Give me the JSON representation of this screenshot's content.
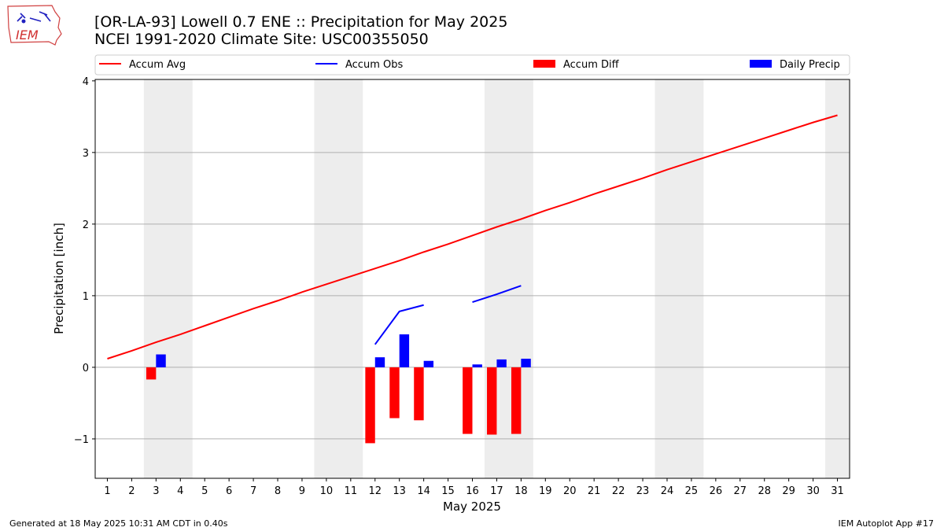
{
  "logo": {
    "text": "IEM"
  },
  "header": {
    "title_line1": "[OR-LA-93] Lowell 0.7 ENE :: Precipitation for May 2025",
    "title_line2": "NCEI 1991-2020 Climate Site: USC00355050"
  },
  "footer": {
    "generated": "Generated at 18 May 2025 10:31 AM CDT in 0.40s",
    "app": "IEM Autoplot App #17"
  },
  "colors": {
    "avg": "#ff0000",
    "obs": "#0000ff",
    "diff": "#ff0000",
    "daily": "#0000ff",
    "weekend": "#ededed",
    "grid": "#b0b0b0"
  },
  "chart_data": {
    "type": "bar",
    "xlabel": "May 2025",
    "ylabel": "Precipitation [inch]",
    "xlim": [
      0.5,
      31.5
    ],
    "ylim": [
      -1.55,
      4.02
    ],
    "yticks": [
      -1,
      0,
      1,
      2,
      3,
      4
    ],
    "yticklabels": [
      "−1",
      "0",
      "1",
      "2",
      "3",
      "4"
    ],
    "grid": "y",
    "days": [
      1,
      2,
      3,
      4,
      5,
      6,
      7,
      8,
      9,
      10,
      11,
      12,
      13,
      14,
      15,
      16,
      17,
      18,
      19,
      20,
      21,
      22,
      23,
      24,
      25,
      26,
      27,
      28,
      29,
      30,
      31
    ],
    "weekend_shading": [
      [
        2.5,
        4.5
      ],
      [
        9.5,
        11.5
      ],
      [
        16.5,
        18.5
      ],
      [
        23.5,
        25.5
      ],
      [
        30.5,
        31.5
      ]
    ],
    "legend": {
      "position": "top",
      "entries": [
        {
          "label": "Accum Avg",
          "kind": "line",
          "color": "#ff0000"
        },
        {
          "label": "Accum Obs",
          "kind": "line",
          "color": "#0000ff"
        },
        {
          "label": "Accum Diff",
          "kind": "bar",
          "color": "#ff0000"
        },
        {
          "label": "Daily Precip",
          "kind": "bar",
          "color": "#0000ff"
        }
      ]
    },
    "series": [
      {
        "name": "Accum Avg",
        "type": "line",
        "x": [
          1,
          2,
          3,
          4,
          5,
          6,
          7,
          8,
          9,
          10,
          11,
          12,
          13,
          14,
          15,
          16,
          17,
          18,
          19,
          20,
          21,
          22,
          23,
          24,
          25,
          26,
          27,
          28,
          29,
          30,
          31
        ],
        "values": [
          0.12,
          0.23,
          0.35,
          0.46,
          0.58,
          0.7,
          0.82,
          0.93,
          1.05,
          1.16,
          1.27,
          1.38,
          1.49,
          1.61,
          1.72,
          1.84,
          1.96,
          2.07,
          2.19,
          2.3,
          2.42,
          2.53,
          2.64,
          2.76,
          2.87,
          2.98,
          3.09,
          3.2,
          3.31,
          3.42,
          3.52
        ]
      },
      {
        "name": "Accum Obs",
        "type": "line",
        "segments": [
          {
            "x": [
              12,
              13,
              14
            ],
            "values": [
              0.32,
              0.78,
              0.87
            ]
          },
          {
            "x": [
              16,
              17,
              18
            ],
            "values": [
              0.91,
              1.02,
              1.14
            ]
          }
        ]
      },
      {
        "name": "Accum Diff",
        "type": "bar",
        "x": [
          3,
          12,
          13,
          14,
          16,
          17,
          18
        ],
        "values": [
          -0.17,
          -1.06,
          -0.71,
          -0.74,
          -0.93,
          -0.94,
          -0.93
        ]
      },
      {
        "name": "Daily Precip",
        "type": "bar",
        "x": [
          3,
          12,
          13,
          14,
          16,
          17,
          18
        ],
        "values": [
          0.18,
          0.14,
          0.46,
          0.09,
          0.04,
          0.11,
          0.12
        ]
      }
    ]
  }
}
